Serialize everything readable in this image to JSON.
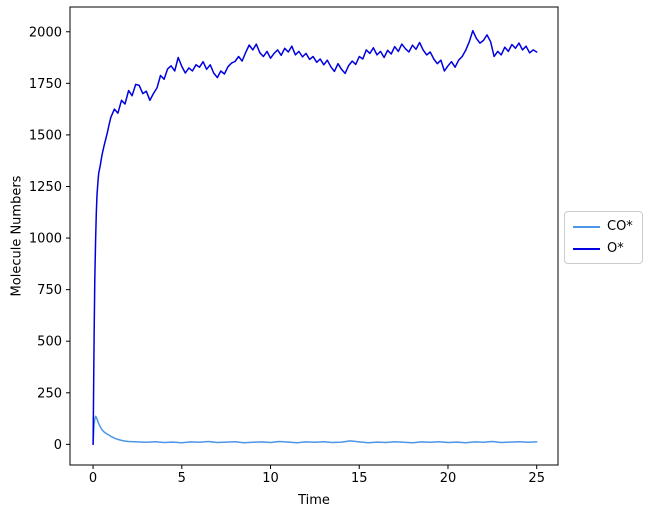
{
  "figure": {
    "background": "#ffffff"
  },
  "chart_data": {
    "type": "line",
    "title": "",
    "xlabel": "Time",
    "ylabel": "Molecule Numbers",
    "xticks": [
      0,
      5,
      10,
      15,
      20,
      25
    ],
    "yticks": [
      0,
      250,
      500,
      750,
      1000,
      1250,
      1500,
      1750,
      2000
    ],
    "xlim": [
      -1.3,
      26.2
    ],
    "ylim": [
      -100,
      2120
    ],
    "grid": false,
    "legend": {
      "position": "outside-center-right",
      "entries": [
        "CO*",
        "O*"
      ],
      "border_color": "#cccccc"
    },
    "series": [
      {
        "name": "CO*",
        "color": "#4c96e8",
        "x": [
          0,
          0.05,
          0.1,
          0.15,
          0.2,
          0.3,
          0.4,
          0.5,
          0.6,
          0.7,
          0.8,
          0.9,
          1,
          1.2,
          1.4,
          1.6,
          1.8,
          2,
          2.5,
          3,
          3.5,
          4,
          4.5,
          5,
          5.5,
          6,
          6.5,
          7,
          7.5,
          8,
          8.5,
          9,
          9.5,
          10,
          10.5,
          11,
          11.5,
          12,
          12.5,
          13,
          13.5,
          14,
          14.5,
          15,
          15.5,
          16,
          16.5,
          17,
          17.5,
          18,
          18.5,
          19,
          19.5,
          20,
          20.5,
          21,
          21.5,
          22,
          22.5,
          23,
          23.5,
          24,
          24.5,
          25
        ],
        "y": [
          0,
          90,
          125,
          136,
          128,
          104,
          86,
          71,
          62,
          55,
          50,
          45,
          39,
          30,
          24,
          19,
          16,
          14,
          12,
          10,
          13,
          9,
          11,
          8,
          12,
          10,
          14,
          9,
          11,
          13,
          8,
          10,
          12,
          9,
          14,
          11,
          8,
          12,
          10,
          13,
          9,
          11,
          17,
          12,
          8,
          11,
          9,
          13,
          10,
          8,
          12,
          10,
          13,
          9,
          11,
          8,
          12,
          10,
          14,
          9,
          11,
          13,
          10,
          12
        ]
      },
      {
        "name": "O*",
        "color": "#0000e0",
        "x": [
          0,
          0.03,
          0.06,
          0.1,
          0.14,
          0.18,
          0.22,
          0.27,
          0.32,
          0.4,
          0.5,
          0.6,
          0.7,
          0.8,
          0.9,
          1,
          1.2,
          1.4,
          1.6,
          1.8,
          2,
          2.2,
          2.4,
          2.6,
          2.8,
          3,
          3.2,
          3.4,
          3.6,
          3.8,
          4,
          4.2,
          4.4,
          4.6,
          4.8,
          5,
          5.2,
          5.4,
          5.6,
          5.8,
          6,
          6.2,
          6.4,
          6.6,
          6.8,
          7,
          7.2,
          7.4,
          7.6,
          7.8,
          8,
          8.2,
          8.4,
          8.6,
          8.8,
          9,
          9.2,
          9.4,
          9.6,
          9.8,
          10,
          10.2,
          10.4,
          10.6,
          10.8,
          11,
          11.2,
          11.4,
          11.6,
          11.8,
          12,
          12.2,
          12.4,
          12.6,
          12.8,
          13,
          13.2,
          13.4,
          13.6,
          13.8,
          14,
          14.2,
          14.4,
          14.6,
          14.8,
          15,
          15.2,
          15.4,
          15.6,
          15.8,
          16,
          16.2,
          16.4,
          16.6,
          16.8,
          17,
          17.2,
          17.4,
          17.6,
          17.8,
          18,
          18.2,
          18.4,
          18.6,
          18.8,
          19,
          19.2,
          19.4,
          19.6,
          19.8,
          20,
          20.2,
          20.4,
          20.6,
          20.8,
          21,
          21.2,
          21.4,
          21.6,
          21.8,
          22,
          22.2,
          22.4,
          22.6,
          22.8,
          23,
          23.2,
          23.4,
          23.6,
          23.8,
          24,
          24.2,
          24.4,
          24.6,
          24.8,
          25
        ],
        "y": [
          0,
          260,
          520,
          800,
          990,
          1120,
          1210,
          1270,
          1315,
          1350,
          1400,
          1440,
          1475,
          1510,
          1548,
          1585,
          1625,
          1605,
          1668,
          1650,
          1715,
          1690,
          1745,
          1740,
          1700,
          1712,
          1668,
          1700,
          1728,
          1788,
          1770,
          1820,
          1835,
          1810,
          1875,
          1832,
          1800,
          1825,
          1810,
          1840,
          1828,
          1855,
          1818,
          1840,
          1800,
          1778,
          1810,
          1795,
          1830,
          1848,
          1856,
          1880,
          1858,
          1900,
          1936,
          1912,
          1940,
          1898,
          1880,
          1905,
          1872,
          1895,
          1912,
          1886,
          1920,
          1902,
          1930,
          1888,
          1905,
          1878,
          1895,
          1866,
          1880,
          1852,
          1868,
          1840,
          1862,
          1830,
          1808,
          1845,
          1818,
          1798,
          1836,
          1858,
          1842,
          1880,
          1868,
          1912,
          1895,
          1922,
          1888,
          1905,
          1875,
          1910,
          1892,
          1928,
          1905,
          1940,
          1918,
          1902,
          1935,
          1915,
          1948,
          1912,
          1888,
          1902,
          1868,
          1845,
          1862,
          1810,
          1835,
          1855,
          1828,
          1862,
          1880,
          1910,
          1952,
          2005,
          1968,
          1945,
          1958,
          1985,
          1952,
          1880,
          1905,
          1888,
          1925,
          1905,
          1938,
          1920,
          1945,
          1912,
          1930,
          1898,
          1912,
          1902
        ]
      }
    ]
  }
}
